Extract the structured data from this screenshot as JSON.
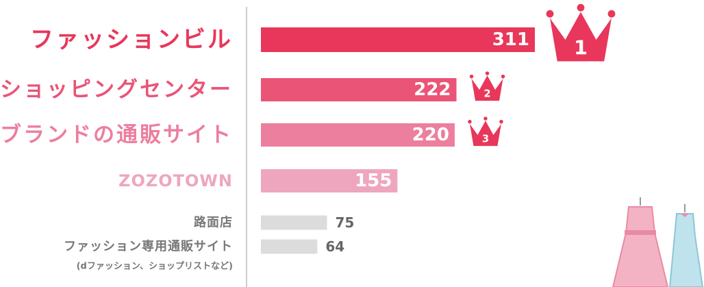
{
  "chart_data": {
    "type": "bar",
    "orientation": "horizontal",
    "categories": [
      "ファッションビル",
      "ショッピングセンター",
      "ブランドの通販サイト",
      "ZOZOTOWN",
      "路面店",
      "ファッション専用通販サイト"
    ],
    "category_note": "(dファッション、ショップリストなど)",
    "values": [
      311,
      222,
      220,
      155,
      75,
      64
    ],
    "colors": [
      "#e8375a",
      "#ea5477",
      "#ec7e9e",
      "#eea6bf",
      "#dcdcdc",
      "#dcdcdc"
    ],
    "rank_labels": [
      1,
      2,
      3
    ],
    "crown_color": "#e8375a"
  }
}
